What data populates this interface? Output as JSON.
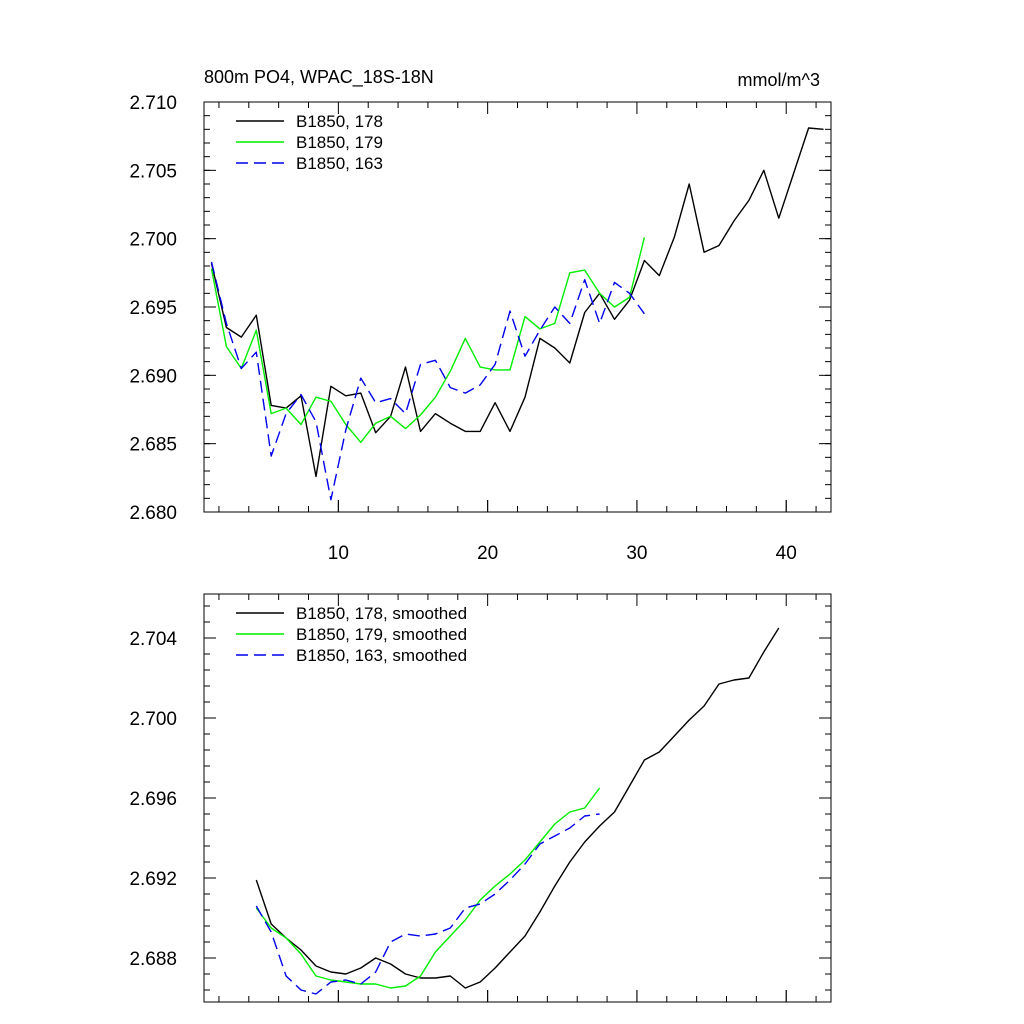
{
  "chart_data": [
    {
      "type": "line",
      "title": "800m PO4, WPAC_18S-18N",
      "units": "mmol/m^3",
      "xlim": [
        1,
        43
      ],
      "ylim": [
        2.68,
        2.71
      ],
      "xticks": [
        10,
        20,
        30,
        40
      ],
      "yticks": [
        2.68,
        2.685,
        2.69,
        2.695,
        2.7,
        2.705,
        2.71
      ],
      "ytick_labels": [
        "2.680",
        "2.685",
        "2.690",
        "2.695",
        "2.700",
        "2.705",
        "2.710"
      ],
      "legend_position": "top-left",
      "series": [
        {
          "name": "B1850, 178",
          "color": "#000000",
          "dash": "solid",
          "x": [
            1.5,
            2.5,
            3.5,
            4.5,
            5.5,
            6.5,
            7.5,
            8.5,
            9.5,
            10.5,
            11.5,
            12.5,
            13.5,
            14.5,
            15.5,
            16.5,
            17.5,
            18.5,
            19.5,
            20.5,
            21.5,
            22.5,
            23.5,
            24.5,
            25.5,
            26.5,
            27.5,
            28.5,
            29.5,
            30.5,
            31.5,
            32.5,
            33.5,
            34.5,
            35.5,
            36.5,
            37.5,
            38.5,
            39.5,
            40.5,
            41.5,
            42.5
          ],
          "values": [
            2.6982,
            2.6935,
            2.6928,
            2.6944,
            2.6878,
            2.6876,
            2.6885,
            2.6826,
            2.6892,
            2.6885,
            2.6887,
            2.6858,
            2.687,
            2.6906,
            2.6859,
            2.6872,
            2.6865,
            2.6859,
            2.6859,
            2.688,
            2.6859,
            2.6884,
            2.6927,
            2.692,
            2.6909,
            2.6946,
            2.696,
            2.6941,
            2.6955,
            2.6984,
            2.6973,
            2.7001,
            2.704,
            2.699,
            2.6995,
            2.7013,
            2.7028,
            2.705,
            2.7015,
            2.7048,
            2.7081,
            2.708
          ]
        },
        {
          "name": "B1850, 179",
          "color": "#00ee00",
          "dash": "solid",
          "x": [
            1.5,
            2.5,
            3.5,
            4.5,
            5.5,
            6.5,
            7.5,
            8.5,
            9.5,
            10.5,
            11.5,
            12.5,
            13.5,
            14.5,
            15.5,
            16.5,
            17.5,
            18.5,
            19.5,
            20.5,
            21.5,
            22.5,
            23.5,
            24.5,
            25.5,
            26.5,
            27.5,
            28.5,
            29.5,
            30.5
          ],
          "values": [
            2.6978,
            2.6921,
            2.6905,
            2.6933,
            2.6872,
            2.6876,
            2.6864,
            2.6884,
            2.6881,
            2.6864,
            2.6851,
            2.6865,
            2.687,
            2.6861,
            2.6871,
            2.6884,
            2.6903,
            2.6927,
            2.6906,
            2.6904,
            2.6904,
            2.6943,
            2.6934,
            2.6938,
            2.6975,
            2.6977,
            2.696,
            2.695,
            2.6957,
            2.7001
          ]
        },
        {
          "name": "B1850, 163",
          "color": "#0000ee",
          "dash": "dashed",
          "x": [
            1.5,
            2.5,
            3.5,
            4.5,
            5.5,
            6.5,
            7.5,
            8.5,
            9.5,
            10.5,
            11.5,
            12.5,
            13.5,
            14.5,
            15.5,
            16.5,
            17.5,
            18.5,
            19.5,
            20.5,
            21.5,
            22.5,
            23.5,
            24.5,
            25.5,
            26.5,
            27.5,
            28.5,
            29.5,
            30.5
          ],
          "values": [
            2.6983,
            2.6938,
            2.6905,
            2.6917,
            2.6841,
            2.6872,
            2.6886,
            2.6866,
            2.6809,
            2.686,
            2.6898,
            2.688,
            2.6883,
            2.6872,
            2.6908,
            2.6911,
            2.6891,
            2.6887,
            2.6893,
            2.6908,
            2.6947,
            2.6914,
            2.6933,
            2.695,
            2.6938,
            2.697,
            2.6938,
            2.6968,
            2.696,
            2.6945
          ]
        }
      ]
    },
    {
      "type": "line",
      "xlim": [
        1,
        43
      ],
      "ylim": [
        2.6858,
        2.7062
      ],
      "xticks": [
        10,
        20,
        30,
        40
      ],
      "yticks": [
        2.688,
        2.692,
        2.696,
        2.7,
        2.704
      ],
      "ytick_labels": [
        "2.688",
        "2.692",
        "2.696",
        "2.700",
        "2.704"
      ],
      "legend_position": "top-left",
      "series": [
        {
          "name": "B1850, 178, smoothed",
          "color": "#000000",
          "dash": "solid",
          "x": [
            4.5,
            5.5,
            6.5,
            7.5,
            8.5,
            9.5,
            10.5,
            11.5,
            12.5,
            13.5,
            14.5,
            15.5,
            16.5,
            17.5,
            18.5,
            19.5,
            20.5,
            21.5,
            22.5,
            23.5,
            24.5,
            25.5,
            26.5,
            27.5,
            28.5,
            29.5,
            30.5,
            31.5,
            32.5,
            33.5,
            34.5,
            35.5,
            36.5,
            37.5,
            38.5,
            39.5
          ],
          "values": [
            2.6919,
            2.6897,
            2.689,
            2.6884,
            2.6876,
            2.6873,
            2.6872,
            2.6875,
            2.688,
            2.6877,
            2.6872,
            2.687,
            2.687,
            2.6871,
            2.6865,
            2.6868,
            2.6875,
            2.6883,
            2.6891,
            2.6903,
            2.6916,
            2.6928,
            2.6938,
            2.6946,
            2.6953,
            2.6966,
            2.6979,
            2.6983,
            2.6991,
            2.6999,
            2.7006,
            2.7017,
            2.7019,
            2.702,
            2.7033,
            2.7045
          ]
        },
        {
          "name": "B1850, 179, smoothed",
          "color": "#00ee00",
          "dash": "solid",
          "x": [
            4.5,
            5.5,
            6.5,
            7.5,
            8.5,
            9.5,
            10.5,
            11.5,
            12.5,
            13.5,
            14.5,
            15.5,
            16.5,
            17.5,
            18.5,
            19.5,
            20.5,
            21.5,
            22.5,
            23.5,
            24.5,
            25.5,
            26.5,
            27.5
          ],
          "values": [
            2.6905,
            2.6895,
            2.689,
            2.6882,
            2.6871,
            2.6869,
            2.6868,
            2.6867,
            2.6867,
            2.6865,
            2.6866,
            2.6871,
            2.6883,
            2.6891,
            2.6899,
            2.6909,
            2.6916,
            2.6922,
            2.6929,
            2.6938,
            2.6947,
            2.6953,
            2.6955,
            2.6965
          ]
        },
        {
          "name": "B1850, 163, smoothed",
          "color": "#0000ee",
          "dash": "dashed",
          "x": [
            4.5,
            5.5,
            6.5,
            7.5,
            8.5,
            9.5,
            10.5,
            11.5,
            12.5,
            13.5,
            14.5,
            15.5,
            16.5,
            17.5,
            18.5,
            19.5,
            20.5,
            21.5,
            22.5,
            23.5,
            24.5,
            25.5,
            26.5,
            27.5
          ],
          "values": [
            2.6906,
            2.6893,
            2.6871,
            2.6864,
            2.6862,
            2.6868,
            2.6869,
            2.6867,
            2.6873,
            2.6888,
            2.6892,
            2.6891,
            2.6892,
            2.6895,
            2.6905,
            2.6907,
            2.6912,
            2.6919,
            2.6927,
            2.6937,
            2.6941,
            2.6945,
            2.6951,
            2.6952
          ]
        }
      ]
    }
  ]
}
